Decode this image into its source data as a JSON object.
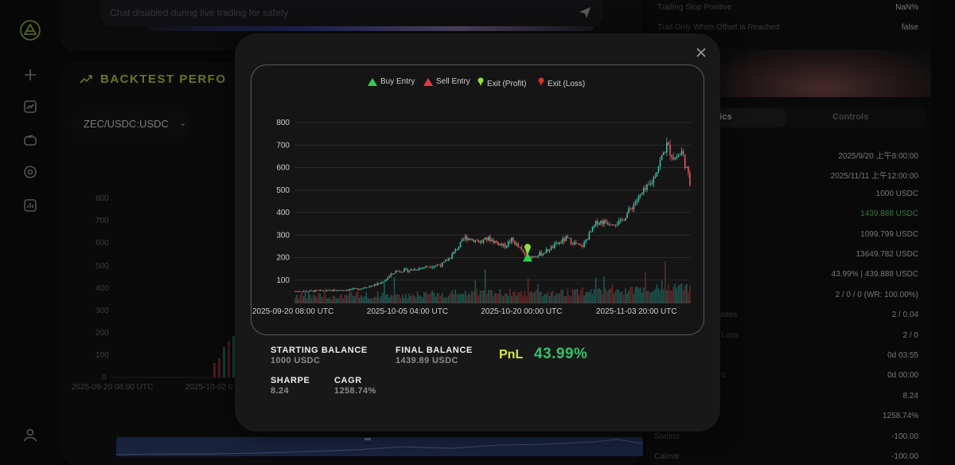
{
  "chat": {
    "placeholder": "Chat disabled during live trading for safety"
  },
  "perf": {
    "title": "BACKTEST PERFO",
    "pair": "ZEC/USDC:USDC",
    "y_ticks": [
      "800",
      "700",
      "600",
      "500",
      "400",
      "300",
      "200",
      "100",
      "0"
    ],
    "x_ticks": [
      "2025-09-20 08:00 UTC",
      "2025-10-02 0"
    ]
  },
  "right": {
    "top_rows": [
      {
        "label": "Trailing Stop Positive",
        "value": "NaN%"
      },
      {
        "label": "Trail Only When Offset is Reached",
        "value": "false"
      }
    ],
    "tabs": {
      "metrics": "rics",
      "controls": "Controls"
    },
    "rows": [
      {
        "label": "",
        "value": "2025/9/20 上午8:00:00",
        "highlight": false
      },
      {
        "label": "",
        "value": "2025/11/11 上午12:00:00",
        "highlight": false
      },
      {
        "label": "",
        "value": "1000 USDC",
        "highlight": false
      },
      {
        "label": "",
        "value": "1439.888 USDC",
        "highlight": true
      },
      {
        "label": "t",
        "value": "1099.799 USDC",
        "highlight": false
      },
      {
        "label": "e",
        "value": "13649.782 USDC",
        "highlight": false
      },
      {
        "label": "",
        "value": "43.99% | 439.888 USDC",
        "highlight": false
      },
      {
        "label": "",
        "value": "2 / 0 / 0 (WR: 100.00%)",
        "highlight": false
      },
      {
        "label": "Avg Trades",
        "value": "2 / 0.04",
        "highlight": false
      },
      {
        "label": "Wins / Loss",
        "value": "2 / 0",
        "highlight": false
      },
      {
        "label": "ners",
        "value": "0d 03:55",
        "highlight": false
      },
      {
        "label": "ers",
        "value": "0d 00:00",
        "highlight": false
      },
      {
        "label": "",
        "value": "8.24",
        "highlight": false
      },
      {
        "label": "",
        "value": "1258.74%",
        "highlight": false
      },
      {
        "label": "Sortino",
        "value": "-100.00",
        "highlight": false
      },
      {
        "label": "Calmar",
        "value": "-100.00",
        "highlight": false
      }
    ]
  },
  "modal": {
    "legend": {
      "buy": "Buy Entry",
      "sell": "Sell Entry",
      "exit_profit": "Exit (Profit)",
      "exit_loss": "Exit (Loss)"
    },
    "stats": {
      "starting_label": "STARTING BALANCE",
      "starting_value": "1000 USDC",
      "final_label": "FINAL BALANCE",
      "final_value": "1439.89 USDC",
      "pnl_label": "PnL",
      "pnl_value": "43.99%",
      "sharpe_label": "SHARPE",
      "sharpe_value": "8.24",
      "cagr_label": "CAGR",
      "cagr_value": "1258.74%"
    }
  },
  "colors": {
    "up": "#3fbfa8",
    "down": "#e05a5a",
    "buy_marker": "#2bd14a",
    "exit_profit_marker": "#8fe23c",
    "accent": "#b7c93b",
    "pnl": "#30c26a"
  },
  "chart_data": {
    "type": "candlestick",
    "x_tick_labels": [
      "2025-09-20 08:00 UTC",
      "2025-10-05 04:00 UTC",
      "2025-10-20 00:00 UTC",
      "2025-11-03 20:00 UTC"
    ],
    "ylim": [
      0,
      800
    ],
    "y_ticks": [
      100,
      200,
      300,
      400,
      500,
      600,
      700,
      800
    ],
    "price_path": [
      [
        "2025-09-20",
        50
      ],
      [
        "2025-09-24",
        52
      ],
      [
        "2025-09-28",
        60
      ],
      [
        "2025-10-01",
        85
      ],
      [
        "2025-10-03",
        140
      ],
      [
        "2025-10-05",
        145
      ],
      [
        "2025-10-07",
        160
      ],
      [
        "2025-10-09",
        170
      ],
      [
        "2025-10-10",
        200
      ],
      [
        "2025-10-11",
        245
      ],
      [
        "2025-10-12",
        290
      ],
      [
        "2025-10-14",
        270
      ],
      [
        "2025-10-15",
        285
      ],
      [
        "2025-10-17",
        250
      ],
      [
        "2025-10-18",
        280
      ],
      [
        "2025-10-20",
        200
      ],
      [
        "2025-10-22",
        220
      ],
      [
        "2025-10-25",
        285
      ],
      [
        "2025-10-27",
        245
      ],
      [
        "2025-10-29",
        360
      ],
      [
        "2025-11-01",
        355
      ],
      [
        "2025-11-03",
        450
      ],
      [
        "2025-11-05",
        530
      ],
      [
        "2025-11-07",
        700
      ],
      [
        "2025-11-08",
        640
      ],
      [
        "2025-11-09",
        670
      ],
      [
        "2025-11-10",
        530
      ]
    ],
    "markers": [
      {
        "type": "buy",
        "date": "2025-10-20",
        "price": 200
      },
      {
        "type": "exit_profit",
        "date": "2025-10-20",
        "price": 240
      }
    ],
    "legend": [
      "Buy Entry",
      "Sell Entry",
      "Exit (Profit)",
      "Exit (Loss)"
    ],
    "legend_position": "top-center",
    "grid": true
  }
}
